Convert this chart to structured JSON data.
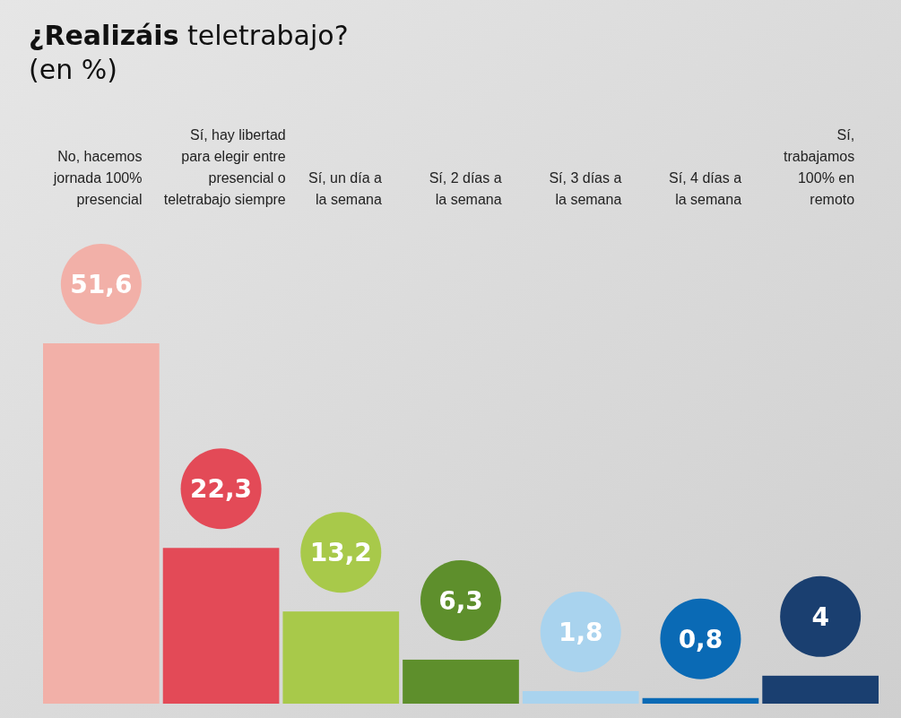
{
  "chart_data": {
    "type": "bar",
    "title": "¿Realizáis teletrabajo?",
    "subtitle": "(en %)",
    "categories": [
      "No, hacemos jornada 100% presencial",
      "Sí, hay libertad para elegir entre presencial o teletrabajo siempre",
      "Sí, un día a la semana",
      "Sí, 2 días a la semana",
      "Sí, 3 días a la semana",
      "Sí, 4 días a la semana",
      "Sí, trabajamos 100% en remoto"
    ],
    "values": [
      51.6,
      22.3,
      13.2,
      6.3,
      1.8,
      0.8,
      4
    ],
    "value_labels": [
      "51,6",
      "22,3",
      "13,2",
      "6,3",
      "1,8",
      "0,8",
      "4"
    ],
    "colors": [
      "#f2b0a8",
      "#e34a57",
      "#a8c94a",
      "#5e8f2c",
      "#a9d3ee",
      "#0a6ab5",
      "#1a3f70"
    ]
  }
}
